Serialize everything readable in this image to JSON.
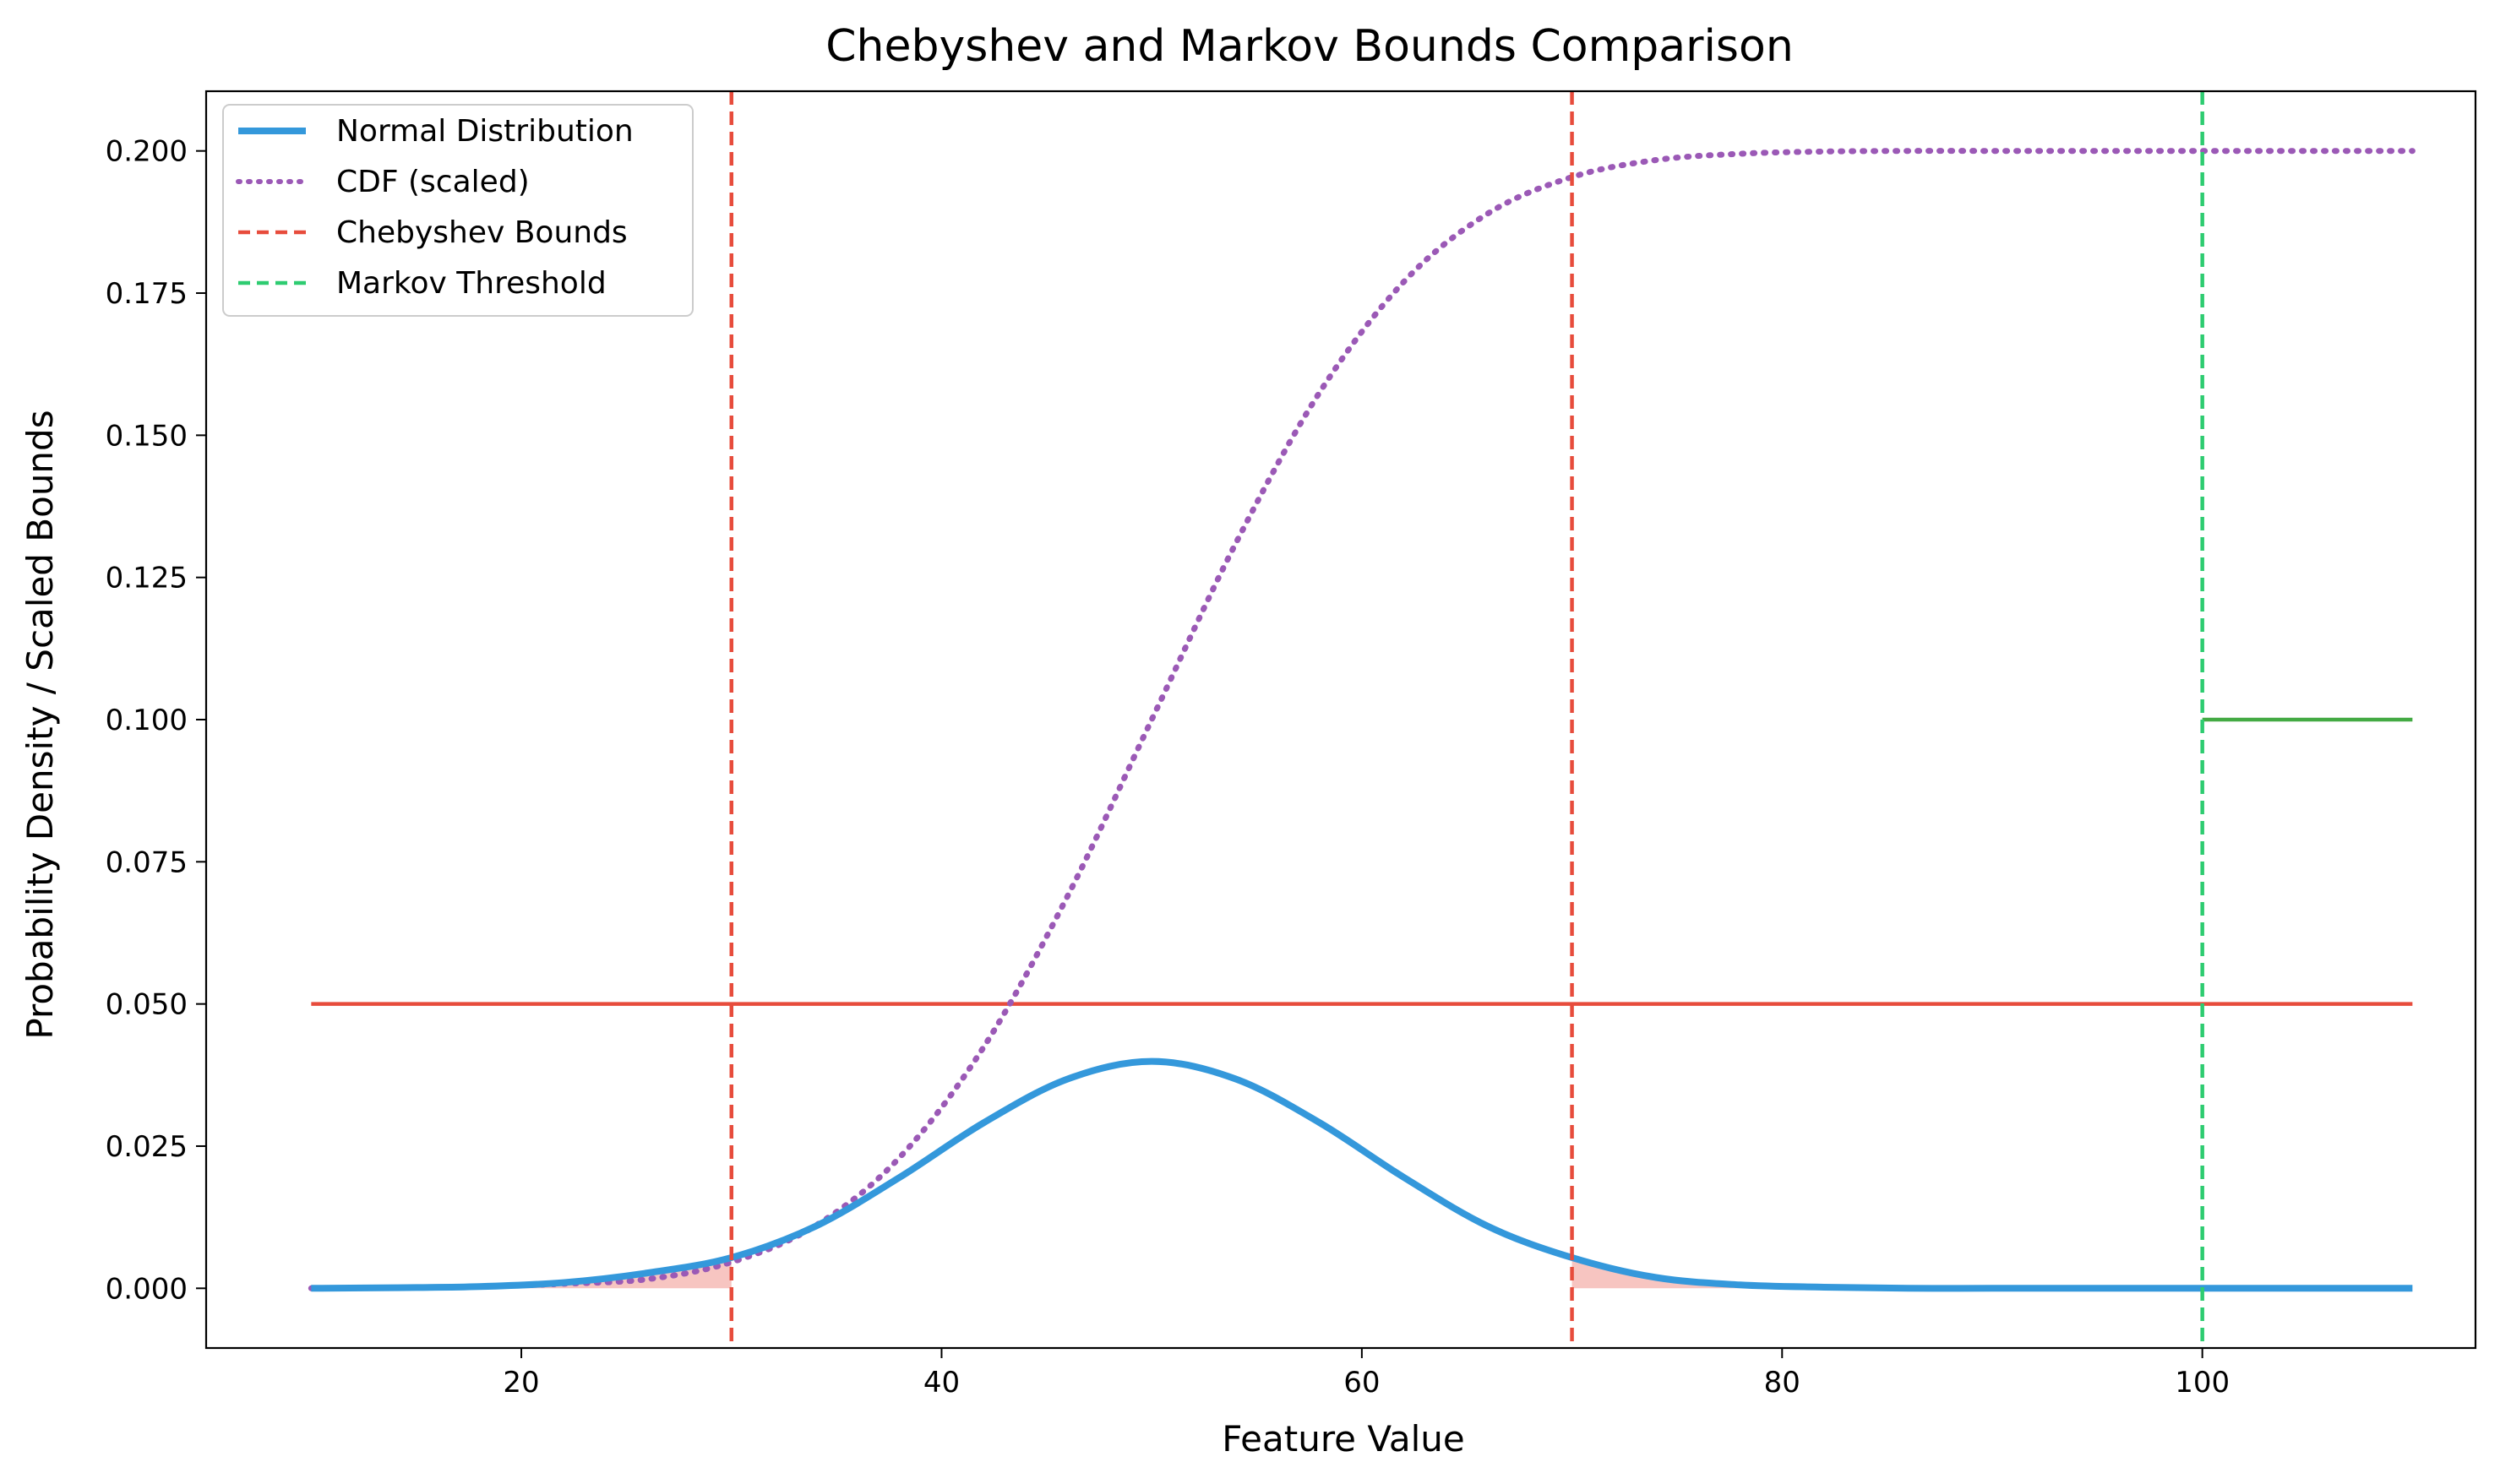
{
  "chart_data": {
    "type": "line",
    "title": "Chebyshev and Markov Bounds Comparison",
    "xlabel": "Feature Value",
    "ylabel": "Probability Density / Scaled Bounds",
    "xlim": [
      5,
      113
    ],
    "ylim": [
      -0.0105,
      0.2105
    ],
    "x_ticks": [
      20,
      40,
      60,
      80,
      100
    ],
    "y_ticks": [
      0.0,
      0.025,
      0.05,
      0.075,
      0.1,
      0.125,
      0.15,
      0.175,
      0.2
    ],
    "x_tick_labels": [
      "20",
      "40",
      "60",
      "80",
      "100"
    ],
    "y_tick_labels": [
      "0.000",
      "0.025",
      "0.050",
      "0.075",
      "0.100",
      "0.125",
      "0.150",
      "0.175",
      "0.200"
    ],
    "grid": false,
    "legend_position": "top-left",
    "series": [
      {
        "name": "Normal Distribution",
        "style": "solid",
        "color": "#3498db",
        "x": [
          10,
          14,
          18,
          22,
          26,
          30,
          34,
          38,
          42,
          46,
          50,
          54,
          58,
          62,
          66,
          70,
          74,
          78,
          82,
          86,
          90,
          94,
          98,
          102,
          106,
          110
        ],
        "y": [
          0.0,
          0.0001,
          0.0003,
          0.001,
          0.0027,
          0.0054,
          0.0109,
          0.0195,
          0.0291,
          0.0368,
          0.0399,
          0.0368,
          0.0291,
          0.0195,
          0.0109,
          0.0054,
          0.0019,
          0.0006,
          0.0002,
          0.0,
          0.0,
          0.0,
          0.0,
          0.0,
          0.0,
          0.0
        ]
      },
      {
        "name": "CDF (scaled)",
        "style": "dotted",
        "color": "#9b59b6",
        "x": [
          10,
          14,
          18,
          22,
          26,
          30,
          34,
          38,
          42,
          46,
          50,
          54,
          58,
          62,
          66,
          70,
          74,
          78,
          82,
          86,
          90,
          94,
          98,
          102,
          106,
          110
        ],
        "y": [
          0.0,
          0.0001,
          0.0003,
          0.0008,
          0.0016,
          0.0046,
          0.011,
          0.023,
          0.0424,
          0.069,
          0.1,
          0.131,
          0.1576,
          0.177,
          0.189,
          0.1954,
          0.1984,
          0.1995,
          0.1999,
          0.2,
          0.2,
          0.2,
          0.2,
          0.2,
          0.2,
          0.2
        ]
      },
      {
        "name": "Chebyshev Bounds",
        "style": "dashed",
        "color": "#e74c3c",
        "x_values": [
          30,
          70
        ]
      },
      {
        "name": "Markov Threshold",
        "style": "dashed",
        "color": "#2ecc71",
        "x_values": [
          100
        ]
      }
    ],
    "reference_lines": [
      {
        "y": 0.05,
        "x_start": 10,
        "x_end": 110,
        "color": "#e74c3c"
      },
      {
        "y": 0.1,
        "x_start": 100,
        "x_end": 110,
        "color": "#44aa44"
      }
    ],
    "shaded_regions": [
      {
        "x_start": 10,
        "x_end": 30,
        "color": "#f5b7b1"
      },
      {
        "x_start": 70,
        "x_end": 110,
        "color": "#f5b7b1"
      }
    ]
  }
}
